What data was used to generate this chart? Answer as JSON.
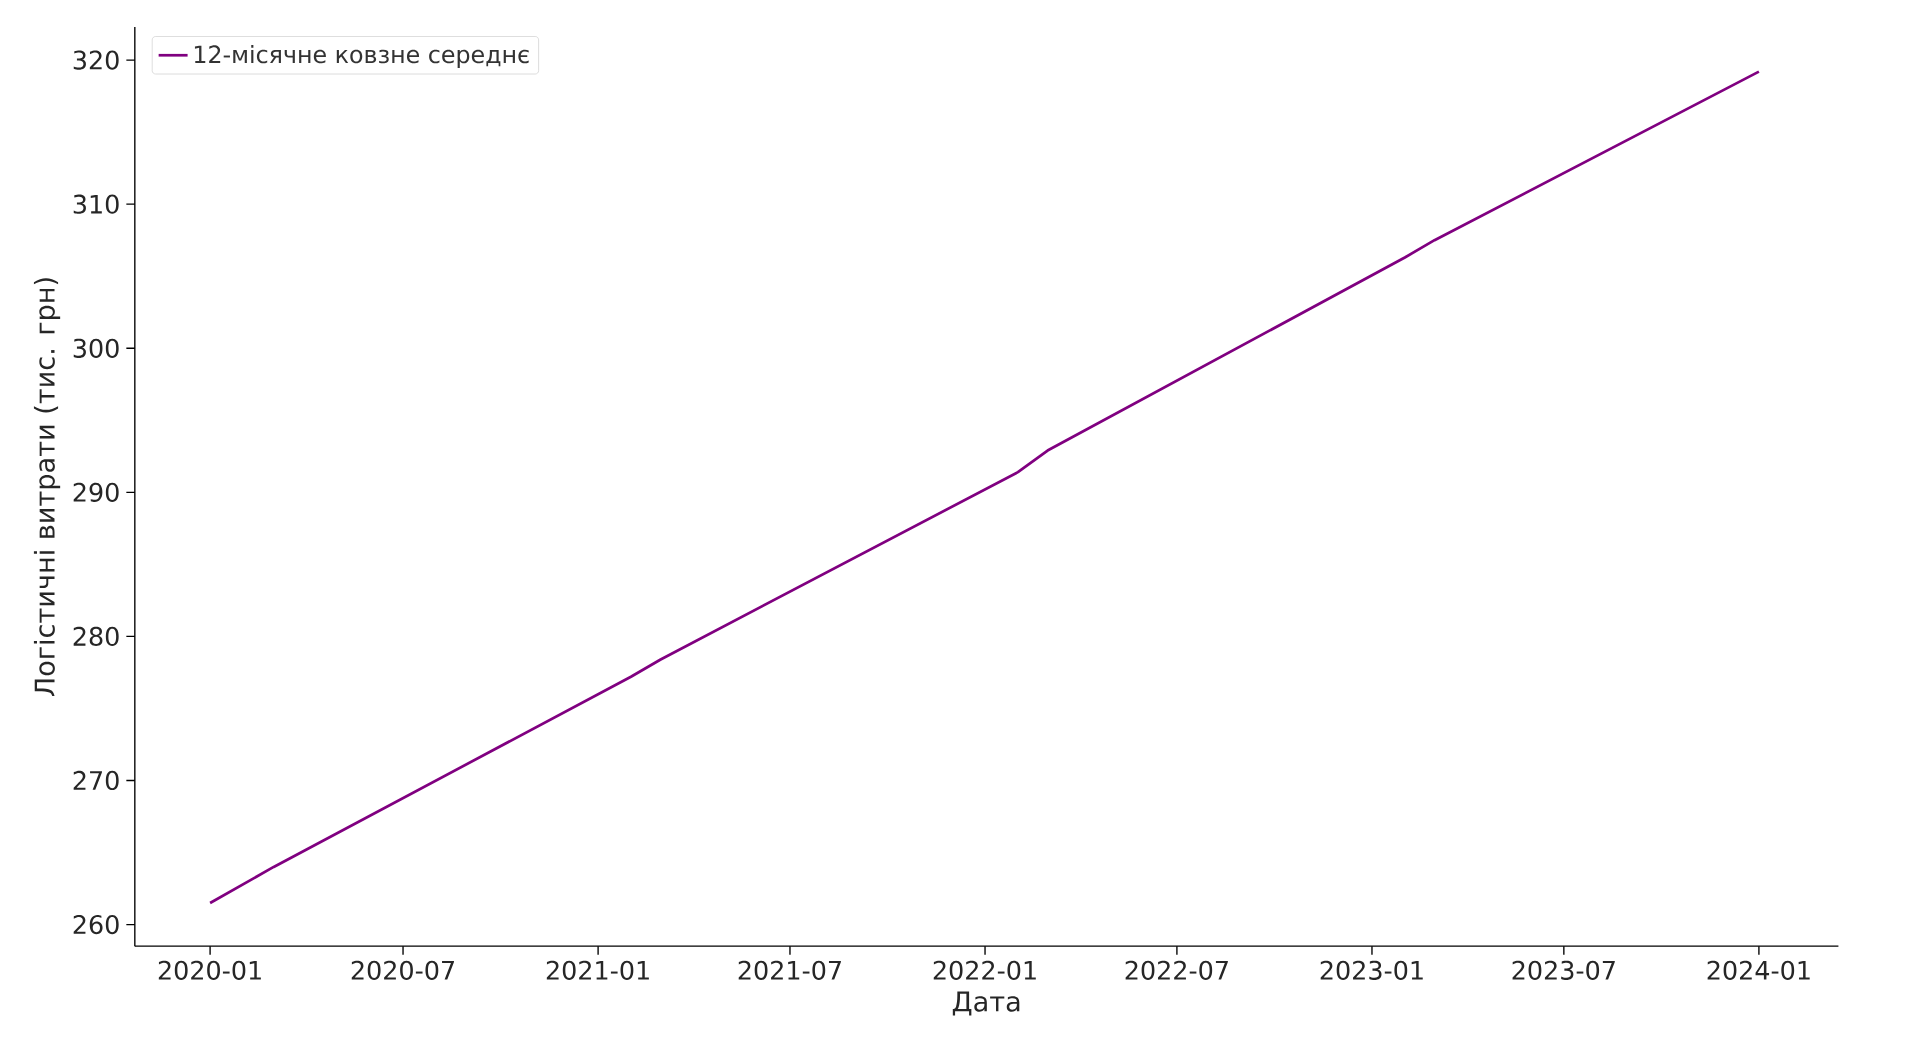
{
  "chart_data": {
    "type": "line",
    "xlabel": "Дата",
    "ylabel": "Логістичні витрати (тис. грн)",
    "x": [
      "2020-01",
      "2020-03",
      "2021-02",
      "2021-03",
      "2022-02",
      "2022-03",
      "2023-02",
      "2023-03",
      "2024-01"
    ],
    "series": [
      {
        "name": "12-місячне ковзне середнє",
        "color": "#800080",
        "values": [
          261.5,
          264.0,
          277.2,
          278.4,
          291.4,
          292.9,
          306.3,
          307.5,
          319.2
        ]
      }
    ],
    "xlim": [
      "2019-10-22",
      "2024-03-16"
    ],
    "ylim": [
      258.5,
      322.3
    ],
    "xticks": [
      "2020-01",
      "2020-07",
      "2021-01",
      "2021-07",
      "2022-01",
      "2022-07",
      "2023-01",
      "2023-07",
      "2024-01"
    ],
    "yticks": [
      260,
      270,
      280,
      290,
      300,
      310,
      320
    ],
    "legend": "top left",
    "grid": false,
    "marker": "none",
    "line_style": "solid"
  }
}
